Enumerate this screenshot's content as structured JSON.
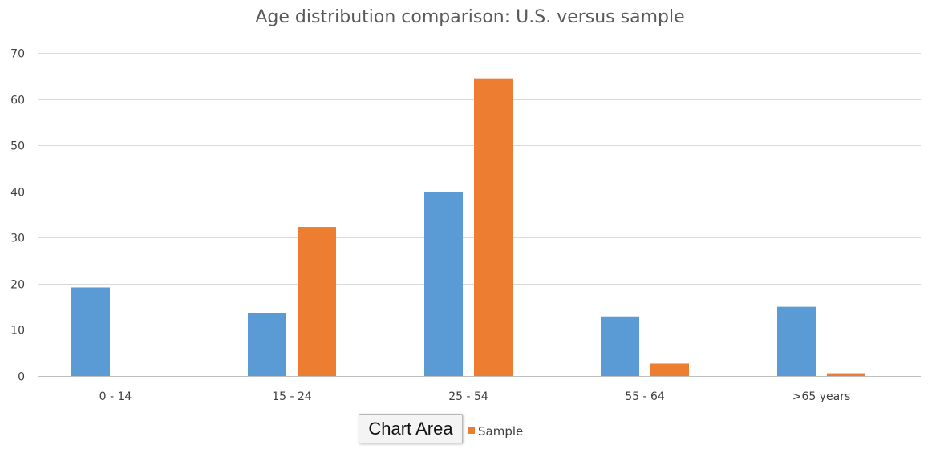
{
  "chart_data": {
    "type": "bar",
    "title": "Age distribution comparison: U.S. versus sample",
    "categories": [
      "0 - 14",
      "15 - 24",
      "25 - 54",
      "55 - 64",
      ">65 years"
    ],
    "series": [
      {
        "values": [
          19.2,
          13.6,
          39.9,
          12.9,
          15.0
        ],
        "color": "#5b9bd5"
      },
      {
        "name": "Sample",
        "values": [
          0,
          32.3,
          64.5,
          2.7,
          0.6
        ],
        "color": "#ed7d31"
      }
    ],
    "ylim": [
      0,
      70
    ],
    "yticks": [
      0,
      10,
      20,
      30,
      40,
      50,
      60,
      70
    ],
    "grid": true,
    "legend": "bottom"
  },
  "tooltip": {
    "text": "Chart Area"
  }
}
